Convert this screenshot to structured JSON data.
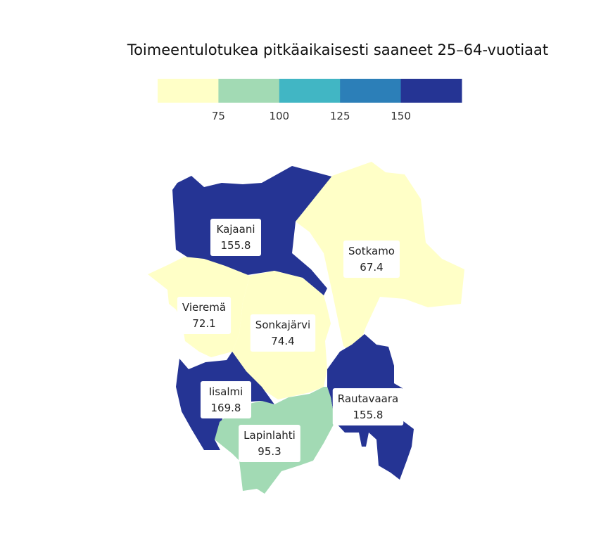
{
  "title": "Toimeentulotukea pitkäaikaisesti saaneet 25–64-vuotiaat",
  "legend": {
    "breaks": [
      75,
      100,
      125,
      150
    ],
    "break_labels": [
      "75",
      "100",
      "125",
      "150"
    ],
    "colors": [
      "#ffffc7",
      "#a2dab4",
      "#41b6c4",
      "#2c7fb8",
      "#253494"
    ]
  },
  "chart_data": {
    "type": "choropleth",
    "title": "Toimeentulotukea pitkäaikaisesti saaneet 25–64-vuotiaat",
    "regions": [
      {
        "name": "Kajaani",
        "value": 155.8,
        "value_label": "155.8"
      },
      {
        "name": "Sotkamo",
        "value": 67.4,
        "value_label": "67.4"
      },
      {
        "name": "Vieremä",
        "value": 72.1,
        "value_label": "72.1"
      },
      {
        "name": "Sonkajärvi",
        "value": 74.4,
        "value_label": "74.4"
      },
      {
        "name": "Iisalmi",
        "value": 169.8,
        "value_label": "169.8"
      },
      {
        "name": "Rautavaara",
        "value": 155.8,
        "value_label": "155.8"
      },
      {
        "name": "Lapinlahti",
        "value": 95.3,
        "value_label": "95.3"
      }
    ]
  }
}
